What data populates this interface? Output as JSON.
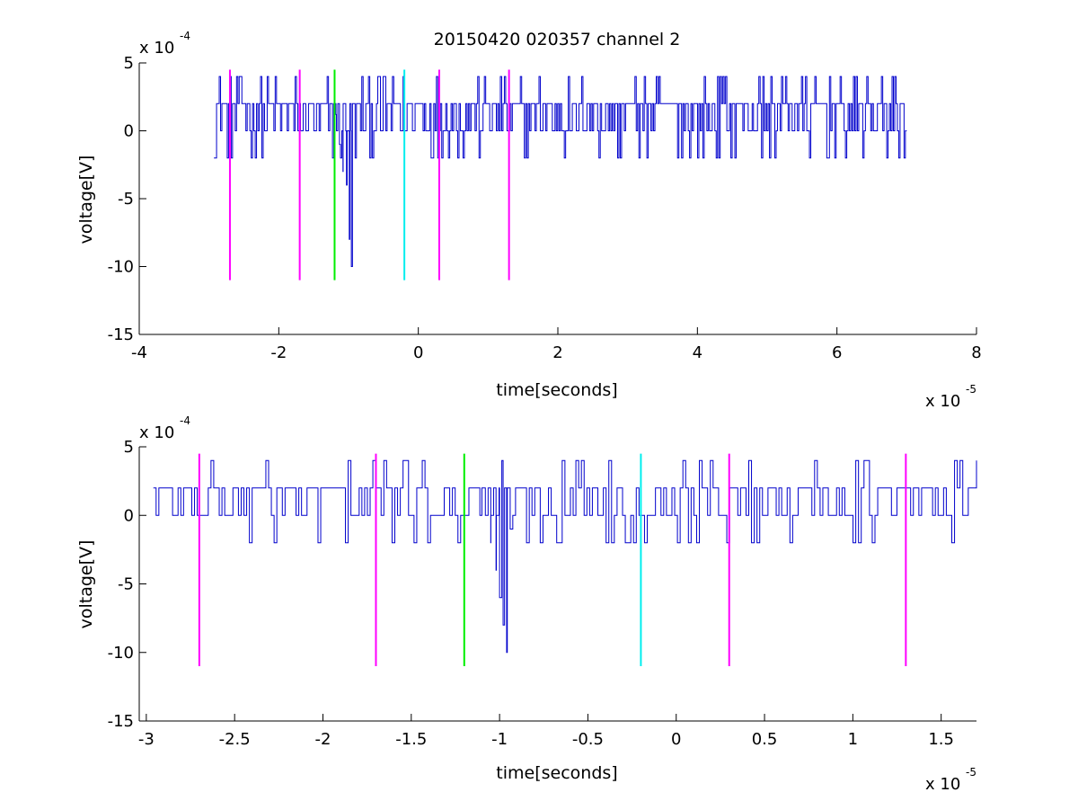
{
  "figure": {
    "title": "20150420 020357 channel 2"
  },
  "colors": {
    "signal": "#0000cc",
    "marker_magenta": "#ff00ff",
    "marker_green": "#00ee00",
    "marker_cyan": "#00eeee",
    "axis": "#000000"
  },
  "chart_data": [
    {
      "type": "line",
      "title": "20150420 020357 channel 2",
      "xlabel": "time[seconds]",
      "ylabel": "voltage[V]",
      "x_exponent_label": "x 10",
      "x_exponent": "-5",
      "y_exponent_label": "x 10",
      "y_exponent": "-4",
      "xlim": [
        -4,
        8
      ],
      "ylim": [
        -15,
        5
      ],
      "x_ticks": [
        -4,
        -2,
        0,
        2,
        4,
        6,
        8
      ],
      "y_ticks": [
        -15,
        -10,
        -5,
        0,
        5
      ],
      "x_tick_labels": [
        "-4",
        "-2",
        "0",
        "2",
        "4",
        "6",
        "8"
      ],
      "y_tick_labels": [
        "-15",
        "-10",
        "-5",
        "0",
        "5"
      ],
      "grid": false,
      "series": [
        {
          "x_range": [
            -2.93,
            7.0
          ],
          "noise_levels": [
            -2,
            0,
            2,
            4
          ],
          "noise_weights": [
            0.1,
            0.3,
            0.5,
            0.1
          ],
          "spike": {
            "x": [
              -1.18,
              -1.13,
              -1.08,
              -1.03,
              -0.99,
              -0.96
            ],
            "y": [
              1.2,
              -1.0,
              -3.0,
              -4.0,
              -8.0,
              -10.0
            ]
          }
        }
      ],
      "markers": [
        {
          "x": -2.7,
          "y": [
            -11,
            4.5
          ],
          "color": "magenta"
        },
        {
          "x": -1.7,
          "y": [
            -11,
            4.5
          ],
          "color": "magenta"
        },
        {
          "x": -1.2,
          "y": [
            -11,
            4.5
          ],
          "color": "green"
        },
        {
          "x": -0.2,
          "y": [
            -11,
            4.5
          ],
          "color": "cyan"
        },
        {
          "x": 0.3,
          "y": [
            -11,
            4.5
          ],
          "color": "magenta"
        },
        {
          "x": 1.3,
          "y": [
            -11,
            4.5
          ],
          "color": "magenta"
        }
      ]
    },
    {
      "type": "line",
      "xlabel": "time[seconds]",
      "ylabel": "voltage[V]",
      "x_exponent_label": "x 10",
      "x_exponent": "-5",
      "y_exponent_label": "x 10",
      "y_exponent": "-4",
      "xlim": [
        -3.04,
        1.7
      ],
      "ylim": [
        -15,
        5
      ],
      "x_ticks": [
        -3,
        -2.5,
        -2,
        -1.5,
        -1,
        -0.5,
        0,
        0.5,
        1,
        1.5
      ],
      "y_ticks": [
        -15,
        -10,
        -5,
        0,
        5
      ],
      "x_tick_labels": [
        "-3",
        "-2.5",
        "-2",
        "-1.5",
        "-1",
        "-0.5",
        "0",
        "0.5",
        "1",
        "1.5"
      ],
      "y_tick_labels": [
        "-15",
        "-10",
        "-5",
        "0",
        "5"
      ],
      "grid": false,
      "series": [
        {
          "x_range": [
            -2.96,
            1.7
          ],
          "noise_levels": [
            -2,
            0,
            2,
            4
          ],
          "noise_weights": [
            0.1,
            0.3,
            0.5,
            0.1
          ],
          "spike": {
            "x": [
              -1.1,
              -1.05,
              -1.02,
              -1.0,
              -0.98,
              -0.96,
              -0.94
            ],
            "y": [
              2.0,
              -2.0,
              -4.0,
              -6.0,
              -8.0,
              -10.0,
              -1.0
            ]
          }
        }
      ],
      "markers": [
        {
          "x": -2.7,
          "y": [
            -11,
            4.5
          ],
          "color": "magenta"
        },
        {
          "x": -1.7,
          "y": [
            -11,
            4.5
          ],
          "color": "magenta"
        },
        {
          "x": -1.2,
          "y": [
            -11,
            4.5
          ],
          "color": "green"
        },
        {
          "x": -0.2,
          "y": [
            -11,
            4.5
          ],
          "color": "cyan"
        },
        {
          "x": 0.3,
          "y": [
            -11,
            4.5
          ],
          "color": "magenta"
        },
        {
          "x": 1.3,
          "y": [
            -11,
            4.5
          ],
          "color": "magenta"
        }
      ]
    }
  ]
}
